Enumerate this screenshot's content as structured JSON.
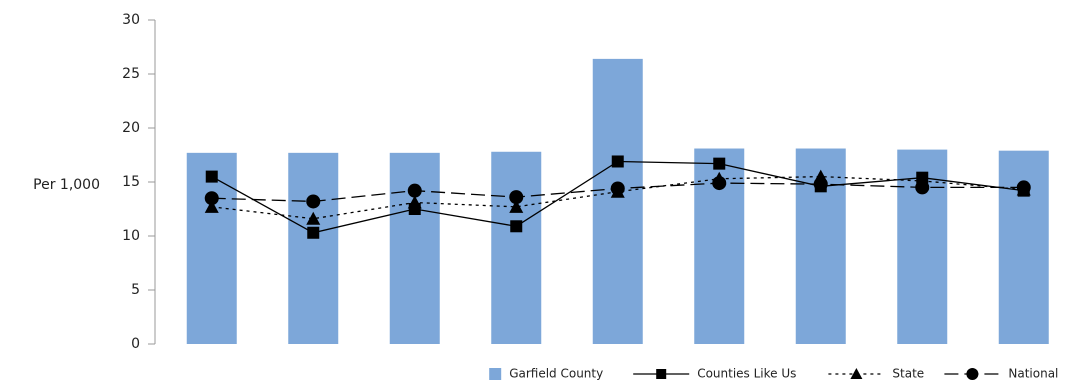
{
  "chart_data": {
    "type": "bar_line",
    "y_label": "Per 1,000",
    "categories": [
      null,
      null,
      null,
      null,
      null,
      null,
      null,
      null,
      null
    ],
    "series": [
      {
        "name": "Garfield County",
        "type": "bar",
        "color": "#7da7d9",
        "values": [
          17.7,
          17.7,
          17.7,
          17.8,
          26.4,
          18.1,
          18.1,
          18.0,
          17.9
        ]
      },
      {
        "name": "Counties Like Us",
        "type": "line",
        "color": "#000000",
        "marker": "square",
        "line_style": "solid",
        "values": [
          15.5,
          10.3,
          12.5,
          10.9,
          16.9,
          16.7,
          14.6,
          15.4,
          14.2
        ]
      },
      {
        "name": "State",
        "type": "line",
        "color": "#000000",
        "marker": "triangle",
        "line_style": "dotted",
        "values": [
          12.7,
          11.6,
          13.1,
          12.7,
          14.1,
          15.3,
          15.5,
          15.1,
          14.3
        ]
      },
      {
        "name": "National",
        "type": "line",
        "color": "#000000",
        "marker": "circle",
        "line_style": "dashed",
        "values": [
          13.5,
          13.2,
          14.2,
          13.6,
          14.4,
          14.9,
          14.8,
          14.5,
          14.5
        ]
      }
    ],
    "ylim": [
      0,
      30
    ],
    "yticks": [
      0,
      5,
      10,
      15,
      20,
      25,
      30
    ],
    "legend": "bottom-right"
  }
}
